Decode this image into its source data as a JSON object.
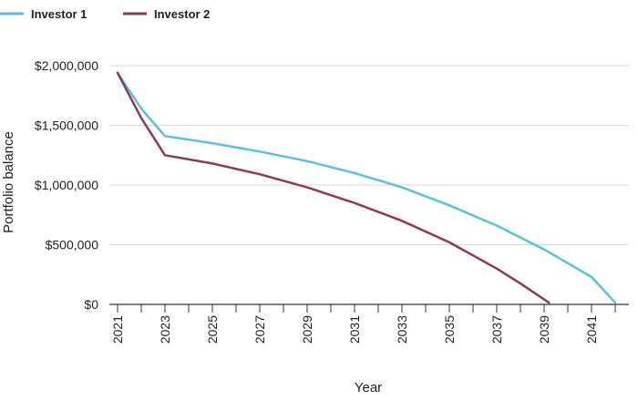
{
  "chart_data": {
    "type": "line",
    "title": "",
    "xlabel": "Year",
    "ylabel": "Portfolio balance",
    "xlim": [
      2021,
      2042.8
    ],
    "ylim": [
      0,
      2000000
    ],
    "grid": "horizontal",
    "legend_position": "top-left",
    "y_ticks": [
      {
        "value": 0,
        "label": "$0"
      },
      {
        "value": 500000,
        "label": "$500,000"
      },
      {
        "value": 1000000,
        "label": "$1,000,000"
      },
      {
        "value": 1500000,
        "label": "$1,500,000"
      },
      {
        "value": 2000000,
        "label": "$2,000,000"
      }
    ],
    "x_ticks": [
      2021,
      2023,
      2025,
      2027,
      2029,
      2031,
      2033,
      2035,
      2037,
      2039,
      2041
    ],
    "series": [
      {
        "name": "Investor 1",
        "color": "#5bc0d8",
        "x": [
          2021,
          2022,
          2023,
          2025,
          2027,
          2029,
          2031,
          2033,
          2035,
          2037,
          2039,
          2041,
          2042
        ],
        "values": [
          1940000,
          1640000,
          1410000,
          1350000,
          1280000,
          1200000,
          1100000,
          980000,
          830000,
          660000,
          460000,
          230000,
          15000
        ]
      },
      {
        "name": "Investor 2",
        "color": "#8b3a5c",
        "x": [
          2021,
          2022,
          2023,
          2025,
          2027,
          2029,
          2031,
          2033,
          2035,
          2037,
          2038,
          2039.2
        ],
        "values": [
          1940000,
          1560000,
          1250000,
          1180000,
          1090000,
          980000,
          850000,
          700000,
          520000,
          300000,
          175000,
          15000
        ]
      }
    ]
  }
}
